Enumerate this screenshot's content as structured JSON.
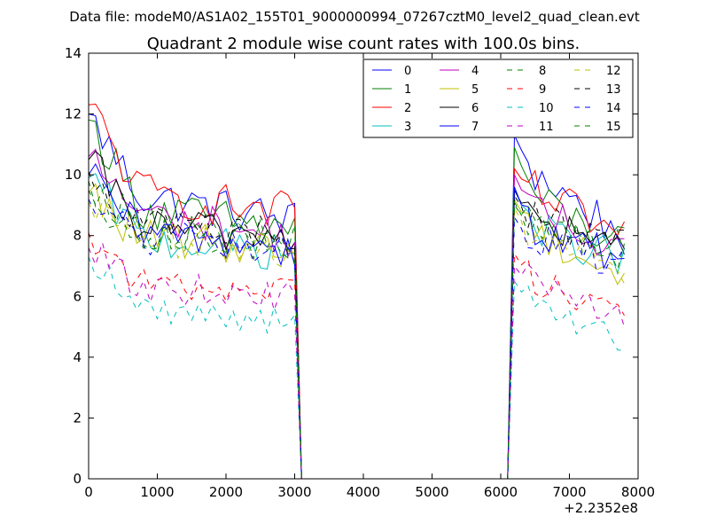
{
  "suptitle": "Data file: modeM0/AS1A02_155T01_9000000994_07267cztM0_level2_quad_clean.evt",
  "chart_data": {
    "type": "line",
    "title": "Quadrant 2 module wise count rates with 100.0s bins.",
    "xlabel": "",
    "ylabel": "",
    "x_offset_label": "+2.2352e8",
    "xlim": [
      0,
      8000
    ],
    "ylim": [
      0,
      14
    ],
    "x_ticks": [
      "0",
      "1000",
      "2000",
      "3000",
      "4000",
      "5000",
      "6000",
      "7000",
      "8000"
    ],
    "y_ticks": [
      "0",
      "2",
      "4",
      "6",
      "8",
      "10",
      "12",
      "14"
    ],
    "grid": false,
    "legend_position": "top-right",
    "series": [
      {
        "name": "0",
        "color": "#0000ff",
        "dash": "solid",
        "seg1": {
          "start": 12.0,
          "mid": 9.3,
          "end": 8.5
        },
        "seg2": {
          "start": 11.3,
          "mid": 10.0,
          "end": 8.0
        }
      },
      {
        "name": "1",
        "color": "#008000",
        "dash": "solid",
        "seg1": {
          "start": 11.8,
          "mid": 8.9,
          "end": 8.2
        },
        "seg2": {
          "start": 10.9,
          "mid": 9.2,
          "end": 7.6
        }
      },
      {
        "name": "2",
        "color": "#ff0000",
        "dash": "solid",
        "seg1": {
          "start": 12.3,
          "mid": 9.4,
          "end": 8.7
        },
        "seg2": {
          "start": 10.2,
          "mid": 9.4,
          "end": 7.9
        }
      },
      {
        "name": "3",
        "color": "#00bfbf",
        "dash": "solid",
        "seg1": {
          "start": 9.9,
          "mid": 7.9,
          "end": 7.4
        },
        "seg2": {
          "start": 9.5,
          "mid": 8.2,
          "end": 7.2
        }
      },
      {
        "name": "4",
        "color": "#bf00bf",
        "dash": "solid",
        "seg1": {
          "start": 10.6,
          "mid": 8.7,
          "end": 7.9
        },
        "seg2": {
          "start": 10.0,
          "mid": 8.7,
          "end": 7.6
        }
      },
      {
        "name": "5",
        "color": "#bfbf00",
        "dash": "solid",
        "seg1": {
          "start": 9.4,
          "mid": 7.9,
          "end": 7.6
        },
        "seg2": {
          "start": 9.2,
          "mid": 8.1,
          "end": 6.6
        }
      },
      {
        "name": "6",
        "color": "#000000",
        "dash": "solid",
        "seg1": {
          "start": 10.5,
          "mid": 8.3,
          "end": 8.0
        },
        "seg2": {
          "start": 9.5,
          "mid": 8.4,
          "end": 7.5
        }
      },
      {
        "name": "7",
        "color": "#0000ff",
        "dash": "solid",
        "seg1": {
          "start": 10.0,
          "mid": 8.1,
          "end": 7.6
        },
        "seg2": {
          "start": 9.6,
          "mid": 8.0,
          "end": 7.3
        }
      },
      {
        "name": "8",
        "color": "#008000",
        "dash": "dashed",
        "seg1": {
          "start": 9.8,
          "mid": 8.2,
          "end": 7.8
        },
        "seg2": {
          "start": 9.0,
          "mid": 8.3,
          "end": 7.5
        }
      },
      {
        "name": "9",
        "color": "#ff0000",
        "dash": "dashed",
        "seg1": {
          "start": 8.1,
          "mid": 6.4,
          "end": 6.2
        },
        "seg2": {
          "start": 7.4,
          "mid": 6.5,
          "end": 5.6
        }
      },
      {
        "name": "10",
        "color": "#00bfbf",
        "dash": "dashed",
        "seg1": {
          "start": 7.3,
          "mid": 5.6,
          "end": 5.2
        },
        "seg2": {
          "start": 6.5,
          "mid": 5.6,
          "end": 4.5
        }
      },
      {
        "name": "11",
        "color": "#bf00bf",
        "dash": "dashed",
        "seg1": {
          "start": 7.6,
          "mid": 6.3,
          "end": 6.0
        },
        "seg2": {
          "start": 7.0,
          "mid": 6.3,
          "end": 5.4
        }
      },
      {
        "name": "12",
        "color": "#bfbf00",
        "dash": "dashed",
        "seg1": {
          "start": 9.1,
          "mid": 7.8,
          "end": 7.5
        },
        "seg2": {
          "start": 8.9,
          "mid": 7.9,
          "end": 7.0
        }
      },
      {
        "name": "13",
        "color": "#000000",
        "dash": "dashed",
        "seg1": {
          "start": 10.1,
          "mid": 8.4,
          "end": 8.0
        },
        "seg2": {
          "start": 9.3,
          "mid": 8.6,
          "end": 7.6
        }
      },
      {
        "name": "14",
        "color": "#0000ff",
        "dash": "dashed",
        "seg1": {
          "start": 9.2,
          "mid": 7.9,
          "end": 7.5
        },
        "seg2": {
          "start": 8.6,
          "mid": 7.8,
          "end": 7.2
        }
      },
      {
        "name": "15",
        "color": "#008000",
        "dash": "dashed",
        "seg1": {
          "start": 9.5,
          "mid": 8.0,
          "end": 7.7
        },
        "seg2": {
          "start": 9.1,
          "mid": 8.1,
          "end": 7.4
        }
      }
    ],
    "bin_size": 100,
    "active_segments": [
      [
        0,
        3000
      ],
      [
        6200,
        7800
      ]
    ],
    "zero_interval": [
      3100,
      6100
    ]
  }
}
